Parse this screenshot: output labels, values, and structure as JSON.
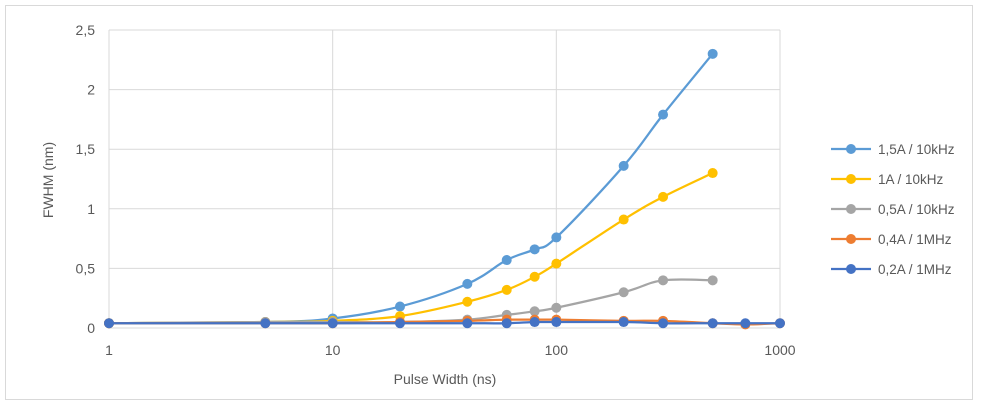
{
  "chart_data": {
    "type": "line",
    "xscale": "log",
    "xlim": [
      1,
      1000
    ],
    "ylim": [
      0,
      2.5
    ],
    "x_ticks": [
      "1",
      "10",
      "100",
      "1000"
    ],
    "y_ticks": [
      "0",
      "0,5",
      "1",
      "1,5",
      "2",
      "2,5"
    ],
    "xlabel": "Pulse Width (ns)",
    "ylabel": "FWHM (nm)",
    "grid": true,
    "legend_position": "right",
    "series": [
      {
        "name": "1,5A / 10kHz",
        "color": "#5b9bd5",
        "x": [
          1,
          5,
          10,
          20,
          40,
          60,
          80,
          100,
          200,
          300,
          500
        ],
        "y": [
          0.04,
          0.05,
          0.08,
          0.18,
          0.37,
          0.57,
          0.66,
          0.76,
          1.36,
          1.79,
          2.3
        ]
      },
      {
        "name": "1A / 10kHz",
        "color": "#ffc000",
        "x": [
          1,
          5,
          10,
          20,
          40,
          60,
          80,
          100,
          200,
          300,
          500
        ],
        "y": [
          0.04,
          0.05,
          0.06,
          0.1,
          0.22,
          0.32,
          0.43,
          0.54,
          0.91,
          1.1,
          1.3
        ]
      },
      {
        "name": "0,5A / 10kHz",
        "color": "#a5a5a5",
        "x": [
          1,
          5,
          10,
          20,
          40,
          60,
          80,
          100,
          200,
          300,
          500
        ],
        "y": [
          0.04,
          0.05,
          0.05,
          0.05,
          0.07,
          0.11,
          0.14,
          0.17,
          0.3,
          0.4,
          0.4
        ]
      },
      {
        "name": "0,4A / 1MHz",
        "color": "#ed7d31",
        "x": [
          1,
          5,
          10,
          20,
          40,
          60,
          80,
          100,
          200,
          300,
          500,
          700,
          1000
        ],
        "y": [
          0.04,
          0.04,
          0.04,
          0.05,
          0.06,
          0.07,
          0.07,
          0.07,
          0.06,
          0.06,
          0.04,
          0.03,
          0.04
        ]
      },
      {
        "name": "0,2A / 1MHz",
        "color": "#4472c4",
        "x": [
          1,
          5,
          10,
          20,
          40,
          60,
          80,
          100,
          200,
          300,
          500,
          700,
          1000
        ],
        "y": [
          0.04,
          0.04,
          0.04,
          0.04,
          0.04,
          0.04,
          0.05,
          0.05,
          0.05,
          0.04,
          0.04,
          0.04,
          0.04
        ]
      }
    ]
  }
}
